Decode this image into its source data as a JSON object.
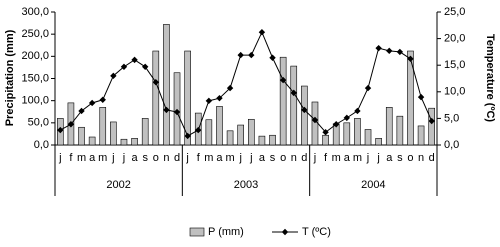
{
  "chart_data": {
    "type": "bar-line",
    "categories": [
      "j",
      "f",
      "m",
      "a",
      "m",
      "j",
      "j",
      "a",
      "s",
      "o",
      "n",
      "d",
      "j",
      "f",
      "m",
      "a",
      "m",
      "j",
      "j",
      "a",
      "s",
      "o",
      "n",
      "d",
      "j",
      "f",
      "m",
      "a",
      "m",
      "j",
      "j",
      "a",
      "s",
      "o",
      "n",
      "d"
    ],
    "year_groups": [
      "2002",
      "2003",
      "2004"
    ],
    "y_label": "Precipitation (mm)",
    "y2_label": "Temperature (ºC)",
    "ylim": [
      0,
      300
    ],
    "yticks": [
      {
        "value": 0,
        "label": "0,0"
      },
      {
        "value": 50,
        "label": "50,0"
      },
      {
        "value": 100,
        "label": "100,0"
      },
      {
        "value": 150,
        "label": "150,0"
      },
      {
        "value": 200,
        "label": "200,0"
      },
      {
        "value": 250,
        "label": "250,0"
      },
      {
        "value": 300,
        "label": "300,0"
      }
    ],
    "y2lim": [
      0,
      25
    ],
    "y2ticks": [
      {
        "value": 0,
        "label": "0,0"
      },
      {
        "value": 5,
        "label": "5,0"
      },
      {
        "value": 10,
        "label": "10,0"
      },
      {
        "value": 15,
        "label": "15,0"
      },
      {
        "value": 20,
        "label": "20,0"
      },
      {
        "value": 25,
        "label": "25,0"
      }
    ],
    "series": [
      {
        "name": "P (mm)",
        "type": "bar",
        "color": "#c0c0c0",
        "values": [
          60,
          95,
          40,
          18,
          85,
          52,
          13,
          15,
          60,
          212,
          272,
          163,
          212,
          72,
          57,
          87,
          32,
          45,
          58,
          20,
          22,
          198,
          178,
          133,
          97,
          22,
          48,
          50,
          60,
          35,
          15,
          85,
          65,
          212,
          43,
          83
        ]
      },
      {
        "name": "T (ºC)",
        "type": "line",
        "axis": "y2",
        "color": "#000000",
        "values": [
          2.8,
          3.9,
          6.4,
          7.9,
          8.5,
          13.0,
          14.7,
          16.0,
          14.7,
          11.8,
          6.6,
          6.2,
          1.7,
          2.8,
          8.3,
          8.8,
          10.7,
          16.9,
          16.9,
          21.2,
          16.4,
          12.2,
          9.8,
          6.6,
          4.7,
          2.4,
          3.9,
          5.1,
          6.4,
          10.7,
          18.2,
          17.7,
          17.5,
          16.2,
          9.0,
          4.5
        ]
      }
    ]
  }
}
